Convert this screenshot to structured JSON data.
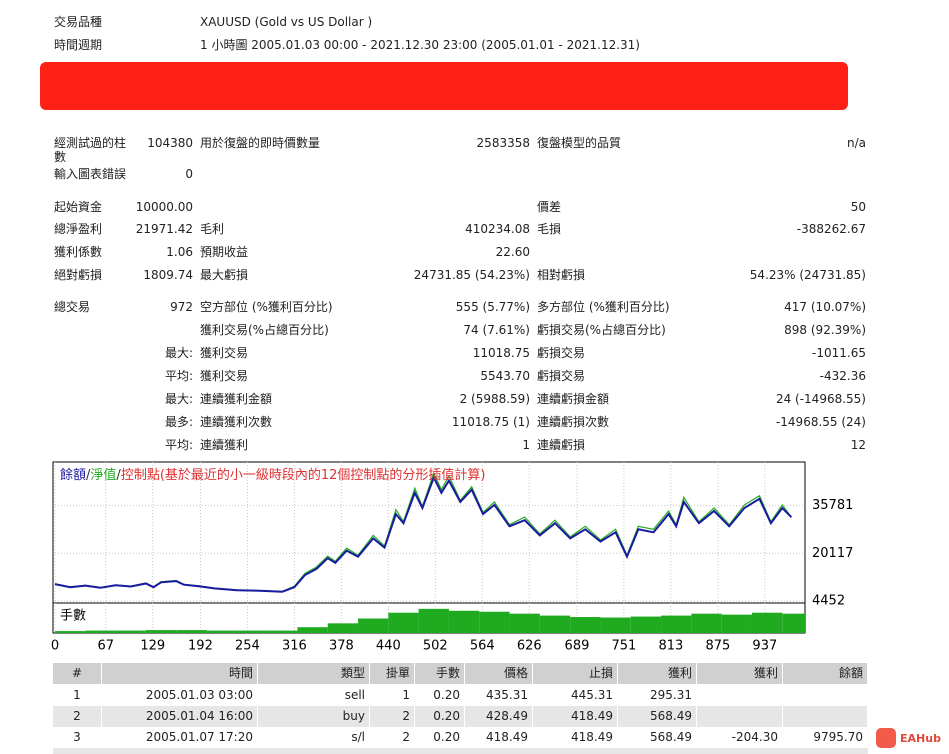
{
  "info": [
    {
      "label": "交易品種",
      "value": "XAUUSD (Gold vs US Dollar )"
    },
    {
      "label": "時間週期",
      "value": "1 小時圖 2005.01.03 00:00 - 2021.12.30 23:00 (2005.01.01 - 2021.12.31)"
    }
  ],
  "stats": [
    [
      "經測試過的柱數",
      "104380",
      "用於復盤的即時價數量",
      "2583358",
      "復盤模型的品質",
      "n/a"
    ],
    [
      "輸入圖表錯誤",
      "0",
      null,
      null,
      null,
      null
    ],
    [
      "起始資金",
      "10000.00",
      null,
      null,
      "價差",
      "50"
    ],
    [
      "總淨盈利",
      "21971.42",
      "毛利",
      "410234.08",
      "毛損",
      "-388262.67"
    ],
    [
      "獲利係數",
      "1.06",
      "預期收益",
      "22.60",
      null,
      null
    ],
    [
      "絕對虧損",
      "1809.74",
      "最大虧損",
      "24731.85 (54.23%)",
      "相對虧損",
      "54.23% (24731.85)"
    ],
    [
      "總交易",
      "972",
      "空方部位 (%獲利百分比)",
      "555 (5.77%)",
      "多方部位 (%獲利百分比)",
      "417 (10.07%)"
    ],
    [
      null,
      null,
      "獲利交易(%占總百分比)",
      "74 (7.61%)",
      "虧損交易(%占總百分比)",
      "898 (92.39%)"
    ],
    [
      null,
      "最大:",
      "獲利交易",
      "11018.75",
      "虧損交易",
      "-1011.65"
    ],
    [
      null,
      "平均:",
      "獲利交易",
      "5543.70",
      "虧損交易",
      "-432.36"
    ],
    [
      null,
      "最大:",
      "連續獲利金額",
      "2 (5988.59)",
      "連續虧損金額",
      "24 (-14968.55)"
    ],
    [
      null,
      "最多:",
      "連續獲利次數",
      "11018.75 (1)",
      "連續虧損次數",
      "-14968.55 (24)"
    ],
    [
      null,
      "平均:",
      "連續獲利",
      "1",
      "連續虧損",
      "12"
    ]
  ],
  "chart_data": {
    "type": "line",
    "legend_separator": "/",
    "annotation": "控制點(基於最近的小一級時段內的12個控制點的分形插值計算)",
    "annotation_color": "#e03030",
    "xlim": [
      0,
      990
    ],
    "ylim": [
      4452,
      50100
    ],
    "yticks": [
      35781,
      20117,
      4452
    ],
    "xticks": [
      0,
      67,
      129,
      192,
      254,
      316,
      378,
      440,
      502,
      564,
      626,
      689,
      751,
      813,
      875,
      937
    ],
    "grid": true,
    "x": [
      0,
      20,
      40,
      60,
      80,
      100,
      120,
      130,
      140,
      160,
      170,
      190,
      210,
      240,
      270,
      300,
      316,
      330,
      345,
      360,
      370,
      385,
      400,
      420,
      435,
      450,
      460,
      475,
      485,
      500,
      510,
      520,
      535,
      550,
      565,
      580,
      600,
      620,
      640,
      660,
      680,
      700,
      720,
      740,
      755,
      770,
      790,
      810,
      820,
      830,
      850,
      870,
      890,
      910,
      930,
      945,
      960,
      972
    ],
    "series": [
      {
        "name": "餘額",
        "color": "#1a1aa0",
        "values": [
          10000,
          9000,
          9500,
          8800,
          9600,
          9200,
          10200,
          9000,
          10600,
          11000,
          9800,
          9300,
          8600,
          8000,
          7800,
          7500,
          9000,
          13000,
          15000,
          18500,
          17000,
          21000,
          19000,
          25000,
          22000,
          33000,
          30000,
          40000,
          35000,
          45000,
          40000,
          44000,
          37000,
          41000,
          33000,
          36000,
          29000,
          31000,
          26000,
          30000,
          25000,
          28000,
          24000,
          27000,
          19000,
          28000,
          27000,
          33000,
          29000,
          37000,
          30000,
          34000,
          29000,
          35000,
          38000,
          30000,
          35000,
          31971
        ]
      },
      {
        "name": "淨值",
        "color": "#22aa22",
        "values": [
          10000,
          9100,
          9600,
          8900,
          9700,
          9300,
          10400,
          9100,
          10800,
          11200,
          9900,
          9400,
          8700,
          8100,
          7900,
          7600,
          9300,
          13500,
          15600,
          19200,
          17500,
          21800,
          19500,
          26000,
          22500,
          34500,
          30500,
          41500,
          35500,
          46500,
          41000,
          45500,
          37500,
          42000,
          33500,
          37000,
          29500,
          32000,
          26500,
          31000,
          25500,
          29000,
          24500,
          28000,
          19500,
          29000,
          28000,
          34000,
          29500,
          38500,
          30500,
          35000,
          29500,
          36000,
          39000,
          30500,
          36000,
          31971
        ]
      }
    ],
    "lots_panel": {
      "label": "手數",
      "color": "#1faa1f",
      "ylim": [
        0,
        0.6
      ],
      "x": [
        0,
        40,
        80,
        120,
        160,
        200,
        240,
        280,
        320,
        360,
        400,
        440,
        480,
        520,
        560,
        600,
        640,
        680,
        720,
        760,
        800,
        840,
        880,
        920,
        960
      ],
      "values": [
        0.04,
        0.05,
        0.05,
        0.06,
        0.06,
        0.05,
        0.05,
        0.05,
        0.12,
        0.2,
        0.3,
        0.42,
        0.5,
        0.46,
        0.44,
        0.4,
        0.36,
        0.33,
        0.32,
        0.34,
        0.36,
        0.4,
        0.38,
        0.42,
        0.4
      ]
    }
  },
  "trades": {
    "columns": [
      "#",
      "時間",
      "類型",
      "掛單",
      "手數",
      "價格",
      "止損",
      "獲利",
      "獲利",
      "餘額"
    ],
    "rows": [
      [
        "1",
        "2005.01.03 03:00",
        "sell",
        "1",
        "0.20",
        "435.31",
        "445.31",
        "295.31"
      ],
      [
        "2",
        "2005.01.04 16:00",
        "buy",
        "2",
        "0.20",
        "428.49",
        "418.49",
        "568.49"
      ],
      [
        "3",
        "2005.01.07 17:20",
        "s/l",
        "2",
        "0.20",
        "418.49",
        "418.49",
        "568.49",
        "-204.30",
        "9795.70"
      ]
    ]
  },
  "watermark": "EAHub"
}
